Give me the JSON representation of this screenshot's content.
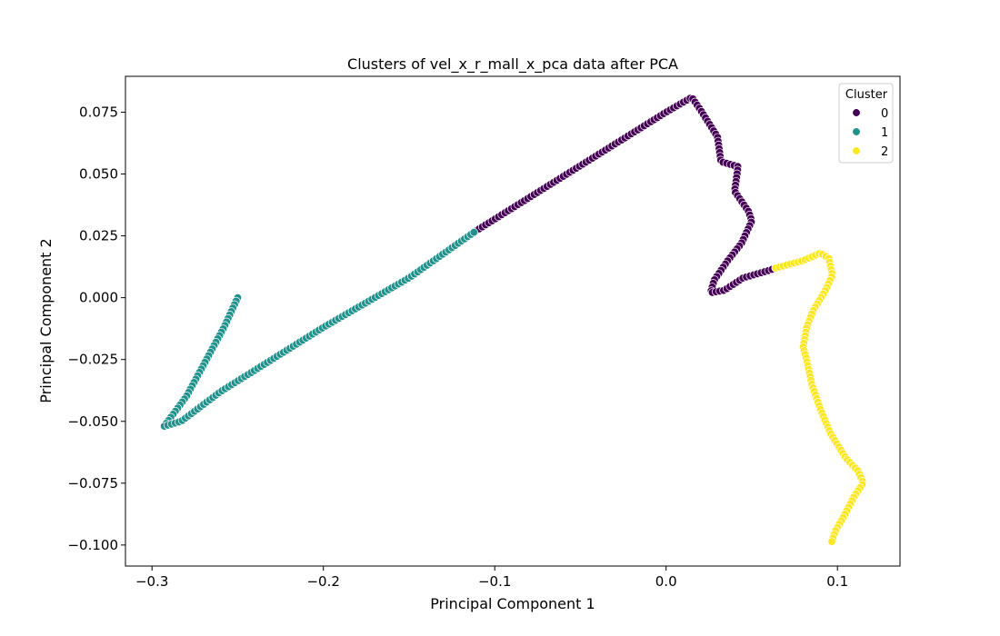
{
  "chart_data": {
    "type": "scatter",
    "title": "Clusters of vel_x_r_mall_x_pca data after PCA",
    "xlabel": "Principal Component 1",
    "ylabel": "Principal Component 2",
    "xlim": [
      -0.3155,
      0.1365
    ],
    "ylim": [
      -0.1085,
      0.0895
    ],
    "x_ticks": [
      -0.3,
      -0.2,
      -0.1,
      0.0,
      0.1
    ],
    "x_tick_labels": [
      "−0.3",
      "−0.2",
      "−0.1",
      "0.0",
      "0.1"
    ],
    "y_ticks": [
      0.075,
      0.05,
      0.025,
      0.0,
      -0.025,
      -0.05,
      -0.075,
      -0.1
    ],
    "y_tick_labels": [
      "0.075",
      "0.050",
      "0.025",
      "0.000",
      "−0.025",
      "−0.050",
      "−0.075",
      "−0.100"
    ],
    "grid": false,
    "legend": {
      "title": "Cluster",
      "placement": "top-right"
    },
    "series": [
      {
        "name": "0",
        "color": "#440154",
        "path": [
          [
            -0.111,
            0.027
          ],
          [
            0.0,
            0.075
          ],
          [
            0.015,
            0.081
          ],
          [
            0.02,
            0.076
          ],
          [
            0.03,
            0.065
          ],
          [
            0.032,
            0.055
          ],
          [
            0.042,
            0.053
          ],
          [
            0.04,
            0.043
          ],
          [
            0.048,
            0.035
          ],
          [
            0.05,
            0.031
          ],
          [
            0.044,
            0.022
          ],
          [
            0.036,
            0.015
          ],
          [
            0.028,
            0.007
          ],
          [
            0.026,
            0.002
          ],
          [
            0.034,
            0.003
          ],
          [
            0.045,
            0.008
          ],
          [
            0.06,
            0.011
          ],
          [
            0.064,
            0.012
          ]
        ]
      },
      {
        "name": "1",
        "color": "#21918c",
        "path": [
          [
            -0.25,
            0.0
          ],
          [
            -0.258,
            -0.012
          ],
          [
            -0.28,
            -0.04
          ],
          [
            -0.293,
            -0.052
          ],
          [
            -0.283,
            -0.05
          ],
          [
            -0.26,
            -0.038
          ],
          [
            -0.2,
            -0.012
          ],
          [
            -0.15,
            0.008
          ],
          [
            -0.111,
            0.027
          ]
        ]
      },
      {
        "name": "2",
        "color": "#fde725",
        "path": [
          [
            0.064,
            0.012
          ],
          [
            0.08,
            0.015
          ],
          [
            0.09,
            0.018
          ],
          [
            0.095,
            0.016
          ],
          [
            0.097,
            0.009
          ],
          [
            0.093,
            0.003
          ],
          [
            0.086,
            -0.005
          ],
          [
            0.082,
            -0.012
          ],
          [
            0.08,
            -0.02
          ],
          [
            0.082,
            -0.025
          ],
          [
            0.085,
            -0.035
          ],
          [
            0.09,
            -0.045
          ],
          [
            0.096,
            -0.055
          ],
          [
            0.105,
            -0.065
          ],
          [
            0.112,
            -0.07
          ],
          [
            0.115,
            -0.075
          ],
          [
            0.11,
            -0.08
          ],
          [
            0.104,
            -0.088
          ],
          [
            0.099,
            -0.094
          ],
          [
            0.096,
            -0.1
          ]
        ]
      }
    ]
  }
}
